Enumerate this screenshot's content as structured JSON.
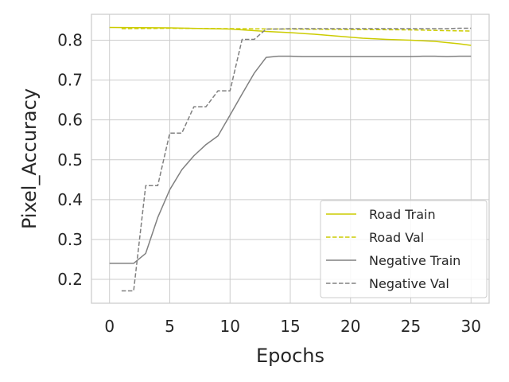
{
  "chart_data": {
    "type": "line",
    "xlabel": "Epochs",
    "ylabel": "Pixel_Accuracy",
    "xlim": [
      -1.5,
      31.5
    ],
    "ylim": [
      0.14,
      0.865
    ],
    "xticks": [
      0,
      5,
      10,
      15,
      20,
      25,
      30
    ],
    "yticks": [
      0.2,
      0.3,
      0.4,
      0.5,
      0.6,
      0.7,
      0.8
    ],
    "ytick_labels": [
      "0.2",
      "0.3",
      "0.4",
      "0.5",
      "0.6",
      "0.7",
      "0.8"
    ],
    "grid": true,
    "legend_position": "lower-right",
    "series": [
      {
        "name": "Road Train",
        "color": "#cccc00",
        "dash": "solid",
        "x": [
          0,
          5,
          10,
          13,
          15,
          17,
          19,
          21,
          23,
          25,
          27,
          29,
          30
        ],
        "y": [
          0.832,
          0.831,
          0.828,
          0.822,
          0.819,
          0.815,
          0.81,
          0.805,
          0.802,
          0.8,
          0.797,
          0.791,
          0.787
        ]
      },
      {
        "name": "Road Val",
        "color": "#cccc00",
        "dash": "dashed",
        "x": [
          1,
          5,
          10,
          15,
          20,
          25,
          28,
          30
        ],
        "y": [
          0.829,
          0.83,
          0.829,
          0.828,
          0.827,
          0.826,
          0.824,
          0.823
        ]
      },
      {
        "name": "Negative Train",
        "color": "#808080",
        "dash": "solid",
        "x": [
          0,
          1,
          2,
          3,
          4,
          5,
          6,
          7,
          8,
          9,
          10,
          11,
          12,
          13,
          14,
          15,
          16,
          17,
          18,
          19,
          20,
          21,
          22,
          23,
          24,
          25,
          26,
          27,
          28,
          29,
          30
        ],
        "y": [
          0.24,
          0.24,
          0.24,
          0.265,
          0.355,
          0.425,
          0.475,
          0.51,
          0.538,
          0.56,
          0.612,
          0.665,
          0.717,
          0.757,
          0.76,
          0.76,
          0.759,
          0.759,
          0.759,
          0.759,
          0.759,
          0.759,
          0.759,
          0.759,
          0.759,
          0.759,
          0.76,
          0.76,
          0.759,
          0.76,
          0.76
        ]
      },
      {
        "name": "Negative Val",
        "color": "#808080",
        "dash": "dashed",
        "x": [
          1,
          2,
          3,
          4,
          5,
          6,
          7,
          8,
          9,
          10,
          11,
          12,
          13,
          14,
          15,
          16,
          17,
          18,
          19,
          20,
          21,
          22,
          23,
          24,
          25,
          26,
          27,
          28,
          29,
          30
        ],
        "y": [
          0.171,
          0.171,
          0.435,
          0.435,
          0.567,
          0.567,
          0.633,
          0.633,
          0.673,
          0.673,
          0.802,
          0.802,
          0.828,
          0.828,
          0.829,
          0.829,
          0.829,
          0.829,
          0.829,
          0.829,
          0.829,
          0.829,
          0.829,
          0.829,
          0.829,
          0.829,
          0.829,
          0.829,
          0.83,
          0.83
        ]
      }
    ]
  }
}
